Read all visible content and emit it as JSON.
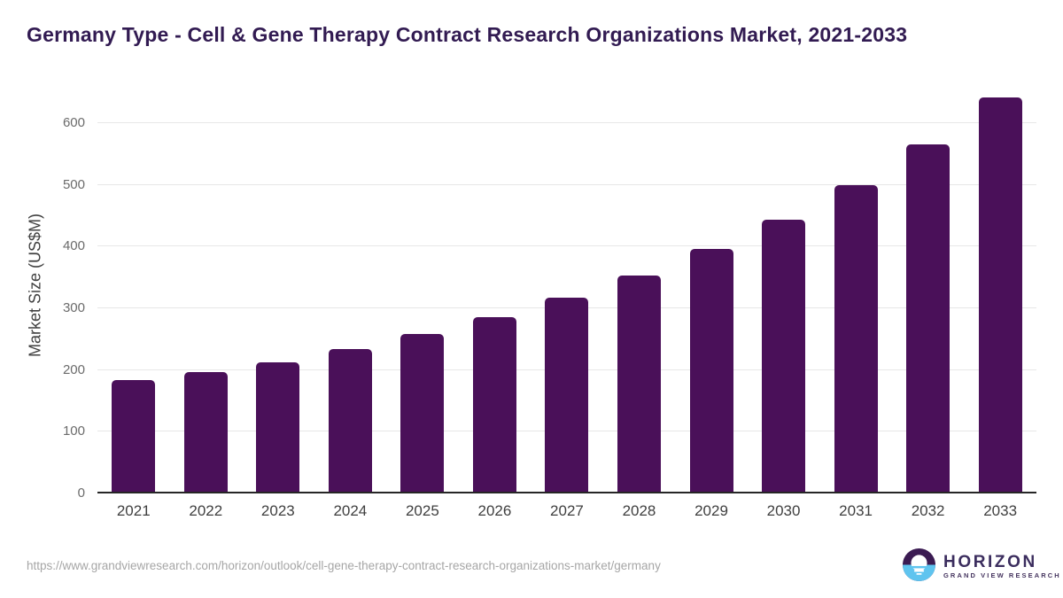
{
  "title": "Germany Type - Cell & Gene Therapy Contract Research Organizations Market, 2021-2033",
  "chart_data": {
    "type": "bar",
    "title": "Germany Type - Cell & Gene Therapy Contract Research Organizations Market, 2021-2033",
    "categories": [
      "2021",
      "2022",
      "2023",
      "2024",
      "2025",
      "2026",
      "2027",
      "2028",
      "2029",
      "2030",
      "2031",
      "2032",
      "2033"
    ],
    "values": [
      181,
      194,
      210,
      231,
      256,
      283,
      314,
      350,
      393,
      440,
      497,
      563,
      639
    ],
    "xlabel": "",
    "ylabel": "Market Size (US$M)",
    "yticks": [
      0,
      100,
      200,
      300,
      400,
      500,
      600
    ],
    "ylim": [
      0,
      656
    ],
    "grid": "horizontal-only",
    "legend": "none",
    "bar_color": "#4a1059"
  },
  "footer": {
    "source_url": "https://www.grandviewresearch.com/horizon/outlook/cell-gene-therapy-contract-research-organizations-market/germany",
    "logo": {
      "name": "HORIZON",
      "tagline": "GRAND VIEW RESEARCH",
      "icon": "horizon-sun-circle",
      "icon_top_color": "#3b1b52",
      "icon_bottom_color": "#5fc4ef"
    }
  },
  "colors": {
    "background": "#ffffff",
    "title_text": "#321b52",
    "bar": "#4a1059",
    "gridline": "#e7e7e7",
    "axis_line": "#262626",
    "tick_text": "#6b6b6b",
    "axis_label_text": "#404040",
    "url_text": "#a6a6a6"
  }
}
